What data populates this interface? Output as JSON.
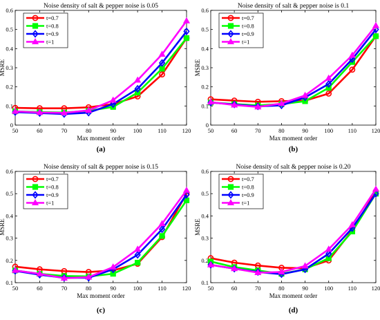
{
  "chart_data": [
    {
      "type": "line",
      "panel_label": "(a)",
      "title": "Noise density of salt & pepper noise is 0.05",
      "xlabel": "Max moment order",
      "ylabel": "MSRE",
      "x": [
        50,
        60,
        70,
        80,
        90,
        100,
        110,
        120
      ],
      "xlim": [
        50,
        120
      ],
      "ylim": [
        0,
        0.6
      ],
      "yticks": [
        "0",
        "0.1",
        "0.2",
        "0.3",
        "0.4",
        "0.5",
        "0.6"
      ],
      "grid": false,
      "legend": "top-left",
      "series": [
        {
          "name": "t=0.7",
          "color": "#ff0000",
          "marker": "circle",
          "values": [
            0.09,
            0.088,
            0.088,
            0.093,
            0.11,
            0.15,
            0.265,
            0.455
          ]
        },
        {
          "name": "t=0.8",
          "color": "#00ff00",
          "marker": "square",
          "values": [
            0.072,
            0.068,
            0.066,
            0.075,
            0.095,
            0.17,
            0.295,
            0.455
          ]
        },
        {
          "name": "t=0.9",
          "color": "#0000ff",
          "marker": "diamond",
          "values": [
            0.068,
            0.063,
            0.058,
            0.065,
            0.11,
            0.19,
            0.325,
            0.49
          ]
        },
        {
          "name": "t=1",
          "color": "#ff00ff",
          "marker": "triangle",
          "values": [
            0.072,
            0.066,
            0.064,
            0.077,
            0.13,
            0.235,
            0.37,
            0.545
          ]
        }
      ]
    },
    {
      "type": "line",
      "panel_label": "(b)",
      "title": "Noise density of salt & pepper noise is 0.1",
      "xlabel": "Max moment order",
      "ylabel": "MSRE",
      "x": [
        50,
        60,
        70,
        80,
        90,
        100,
        110,
        120
      ],
      "xlim": [
        50,
        120
      ],
      "ylim": [
        0,
        0.6
      ],
      "yticks": [
        "0",
        "0.1",
        "0.2",
        "0.3",
        "0.4",
        "0.5",
        "0.6"
      ],
      "grid": false,
      "legend": "top-left",
      "series": [
        {
          "name": "t=0.7",
          "color": "#ff0000",
          "marker": "circle",
          "values": [
            0.135,
            0.128,
            0.122,
            0.125,
            0.128,
            0.165,
            0.29,
            0.465
          ]
        },
        {
          "name": "t=0.8",
          "color": "#00ff00",
          "marker": "square",
          "values": [
            0.118,
            0.11,
            0.103,
            0.11,
            0.125,
            0.195,
            0.33,
            0.465
          ]
        },
        {
          "name": "t=0.9",
          "color": "#0000ff",
          "marker": "diamond",
          "values": [
            0.118,
            0.108,
            0.098,
            0.103,
            0.145,
            0.215,
            0.345,
            0.5
          ]
        },
        {
          "name": "t=1",
          "color": "#ff00ff",
          "marker": "triangle",
          "values": [
            0.12,
            0.105,
            0.095,
            0.113,
            0.155,
            0.245,
            0.365,
            0.52
          ]
        }
      ]
    },
    {
      "type": "line",
      "panel_label": "(c)",
      "title": "Noise density of salt & pepper noise is 0.15",
      "xlabel": "Max moment order",
      "ylabel": "MSRE",
      "x": [
        50,
        60,
        70,
        80,
        90,
        100,
        110,
        120
      ],
      "xlim": [
        50,
        120
      ],
      "ylim": [
        0.1,
        0.6
      ],
      "yticks": [
        "0.1",
        "0.2",
        "0.3",
        "0.4",
        "0.5",
        "0.6"
      ],
      "grid": false,
      "legend": "top-left",
      "series": [
        {
          "name": "t=0.7",
          "color": "#ff0000",
          "marker": "circle",
          "values": [
            0.172,
            0.16,
            0.152,
            0.148,
            0.155,
            0.185,
            0.305,
            0.5
          ]
        },
        {
          "name": "t=0.8",
          "color": "#00ff00",
          "marker": "square",
          "values": [
            0.155,
            0.14,
            0.13,
            0.128,
            0.14,
            0.19,
            0.31,
            0.47
          ]
        },
        {
          "name": "t=0.9",
          "color": "#0000ff",
          "marker": "diamond",
          "values": [
            0.153,
            0.136,
            0.122,
            0.122,
            0.16,
            0.225,
            0.34,
            0.495
          ]
        },
        {
          "name": "t=1",
          "color": "#ff00ff",
          "marker": "triangle",
          "values": [
            0.155,
            0.14,
            0.12,
            0.125,
            0.17,
            0.25,
            0.365,
            0.515
          ]
        }
      ]
    },
    {
      "type": "line",
      "panel_label": "(d)",
      "title": "Noise density of salt & pepper noise is 0.20",
      "xlabel": "Max moment order",
      "ylabel": "MSRE",
      "x": [
        50,
        60,
        70,
        80,
        90,
        100,
        110,
        120
      ],
      "xlim": [
        50,
        120
      ],
      "ylim": [
        0.1,
        0.6
      ],
      "yticks": [
        "0.1",
        "0.2",
        "0.3",
        "0.4",
        "0.5",
        "0.6"
      ],
      "grid": false,
      "legend": "top-right",
      "series": [
        {
          "name": "t=0.7",
          "color": "#ff0000",
          "marker": "circle",
          "values": [
            0.21,
            0.19,
            0.177,
            0.167,
            0.165,
            0.2,
            0.335,
            0.51
          ]
        },
        {
          "name": "t=0.8",
          "color": "#00ff00",
          "marker": "square",
          "values": [
            0.195,
            0.17,
            0.155,
            0.14,
            0.16,
            0.21,
            0.33,
            0.5
          ]
        },
        {
          "name": "t=0.9",
          "color": "#0000ff",
          "marker": "diamond",
          "values": [
            0.18,
            0.163,
            0.148,
            0.138,
            0.16,
            0.23,
            0.345,
            0.5
          ]
        },
        {
          "name": "t=1",
          "color": "#ff00ff",
          "marker": "triangle",
          "values": [
            0.18,
            0.163,
            0.145,
            0.148,
            0.175,
            0.25,
            0.36,
            0.52
          ]
        }
      ]
    }
  ]
}
